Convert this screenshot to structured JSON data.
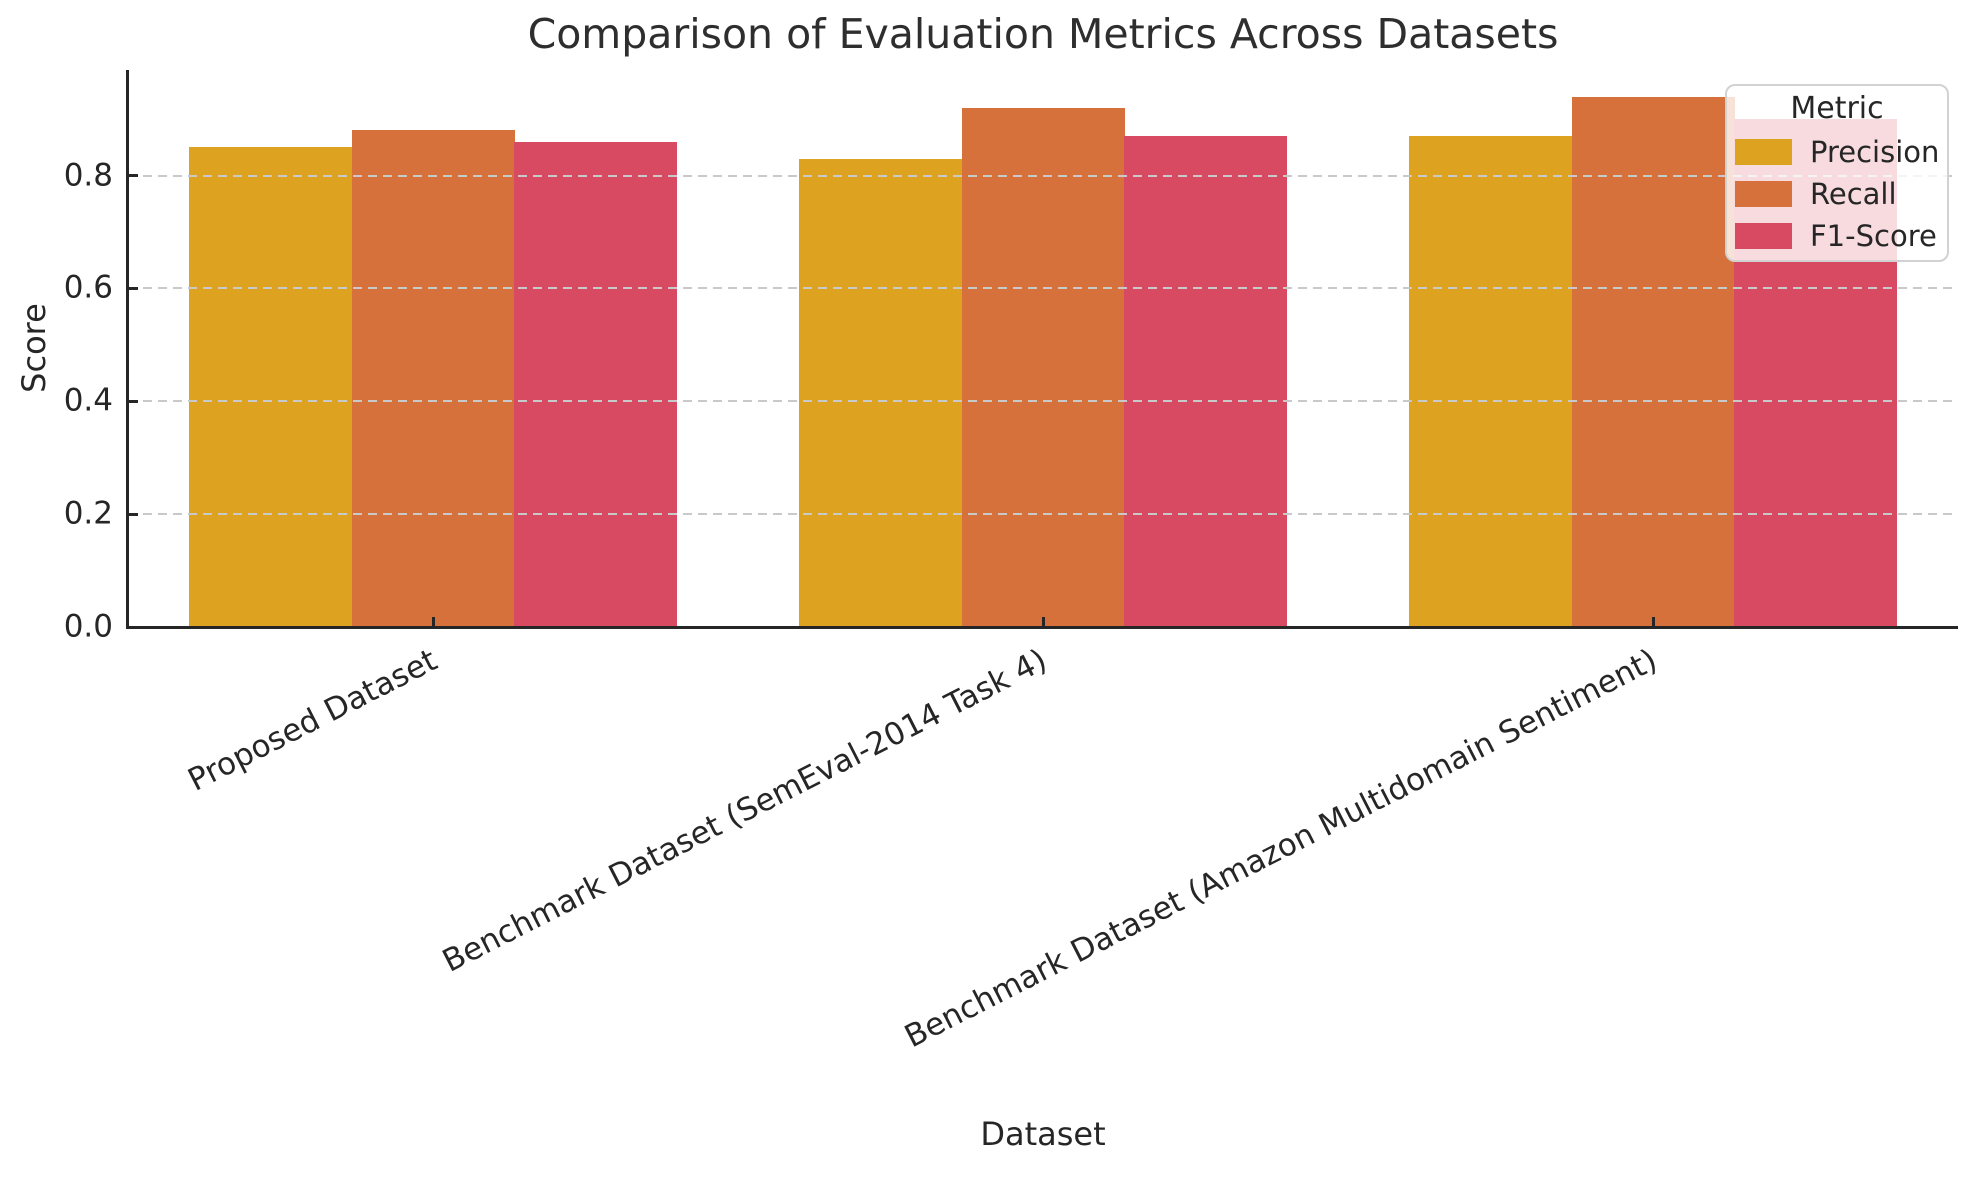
{
  "chart_data": {
    "type": "bar",
    "title": "Comparison of Evaluation Metrics Across Datasets",
    "xlabel": "Dataset",
    "ylabel": "Score",
    "legend_title": "Metric",
    "legend_position": "upper right",
    "categories": [
      "Proposed Dataset",
      "Benchmark Dataset (SemEval-2014 Task 4)",
      "Benchmark Dataset (Amazon Multidomain Sentiment)"
    ],
    "series": [
      {
        "name": "Precision",
        "color": "#DDA220",
        "values": [
          0.85,
          0.83,
          0.87
        ]
      },
      {
        "name": "Recall",
        "color": "#D7713B",
        "values": [
          0.88,
          0.92,
          0.94
        ]
      },
      {
        "name": "F1-Score",
        "color": "#D84A62",
        "values": [
          0.86,
          0.87,
          0.9
        ]
      }
    ],
    "ytick_labels": [
      "0.0",
      "0.2",
      "0.4",
      "0.6",
      "0.8"
    ],
    "ylim": [
      0,
      0.987
    ],
    "grid": "horizontal dashed, drawn above bars",
    "colors": {
      "text": "#262626",
      "grid": "#c9c9c9",
      "spine": "#262626",
      "background": "#ffffff"
    }
  }
}
